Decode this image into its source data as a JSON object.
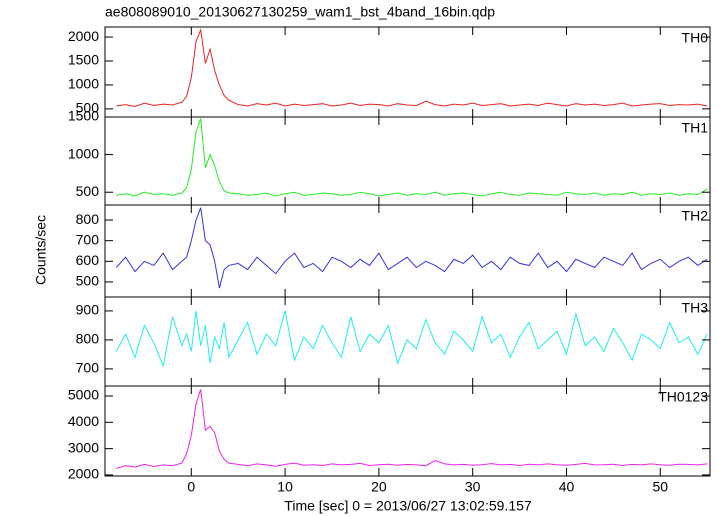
{
  "title": "ae808089010_20130627130259_wam1_bst_4band_16bin.qdp",
  "ylabel": "Counts/sec",
  "xlabel": "Time [sec] 0 = 2013/06/27 13:02:59.157",
  "chart_data": [
    {
      "type": "line",
      "label": "TH0",
      "color": "#ee2222",
      "x": [
        -8,
        -7,
        -6,
        -5,
        -4,
        -3,
        -2,
        -1,
        -0.5,
        0,
        0.5,
        1,
        1.5,
        2,
        2.5,
        3,
        3.5,
        4,
        5,
        6,
        7,
        8,
        9,
        10,
        11,
        12,
        13,
        14,
        15,
        16,
        17,
        18,
        19,
        20,
        21,
        22,
        23,
        24,
        25,
        26,
        27,
        28,
        29,
        30,
        31,
        32,
        33,
        34,
        35,
        36,
        37,
        38,
        39,
        40,
        41,
        42,
        43,
        44,
        45,
        46,
        47,
        48,
        49,
        50,
        51,
        52,
        53,
        54,
        55
      ],
      "values": [
        560,
        590,
        550,
        620,
        570,
        600,
        580,
        640,
        760,
        1150,
        1900,
        2150,
        1450,
        1750,
        1300,
        1000,
        780,
        680,
        590,
        560,
        610,
        580,
        620,
        560,
        600,
        570,
        590,
        610,
        560,
        580,
        620,
        570,
        600,
        590,
        560,
        610,
        580,
        570,
        660,
        590,
        560,
        600,
        580,
        620,
        570,
        590,
        610,
        560,
        580,
        600,
        570,
        620,
        590,
        560,
        610,
        580,
        600,
        570,
        590,
        620,
        560,
        580,
        600,
        610,
        570,
        590,
        580,
        600,
        560
      ],
      "xlim": [
        -9.2,
        55.3
      ],
      "ylim": [
        330,
        2210
      ],
      "xticks": [
        0,
        10,
        20,
        30,
        40,
        50
      ],
      "yticks": [
        500,
        1000,
        1500,
        2000
      ]
    },
    {
      "type": "line",
      "label": "TH1",
      "color": "#22ee22",
      "x": [
        -8,
        -7,
        -6,
        -5,
        -4,
        -3,
        -2,
        -1,
        -0.5,
        0,
        0.5,
        1,
        1.5,
        2,
        2.5,
        3,
        3.5,
        4,
        5,
        6,
        7,
        8,
        9,
        10,
        11,
        12,
        13,
        14,
        15,
        16,
        17,
        18,
        19,
        20,
        21,
        22,
        23,
        24,
        25,
        26,
        27,
        28,
        29,
        30,
        31,
        32,
        33,
        34,
        35,
        36,
        37,
        38,
        39,
        40,
        41,
        42,
        43,
        44,
        45,
        46,
        47,
        48,
        49,
        50,
        51,
        52,
        53,
        54,
        55
      ],
      "values": [
        460,
        480,
        450,
        500,
        470,
        480,
        460,
        490,
        560,
        800,
        1300,
        1480,
        820,
        1000,
        850,
        640,
        520,
        490,
        480,
        460,
        470,
        490,
        450,
        480,
        500,
        460,
        470,
        490,
        480,
        460,
        470,
        500,
        480,
        450,
        470,
        490,
        460,
        480,
        470,
        500,
        460,
        480,
        490,
        470,
        450,
        480,
        500,
        470,
        460,
        490,
        480,
        470,
        460,
        500,
        480,
        470,
        490,
        460,
        480,
        470,
        500,
        460,
        480,
        470,
        490,
        460,
        480,
        470,
        540
      ],
      "xlim": [
        -9.2,
        55.3
      ],
      "ylim": [
        330,
        1500
      ],
      "xticks": [
        0,
        10,
        20,
        30,
        40,
        50
      ],
      "yticks": [
        500,
        1000,
        1500
      ]
    },
    {
      "type": "line",
      "label": "TH2",
      "color": "#3333dd",
      "x": [
        -8,
        -7,
        -6,
        -5,
        -4,
        -3,
        -2,
        -1,
        -0.5,
        0,
        0.5,
        1,
        1.5,
        2,
        2.5,
        3,
        3.5,
        4,
        5,
        6,
        7,
        8,
        9,
        10,
        11,
        12,
        13,
        14,
        15,
        16,
        17,
        18,
        19,
        20,
        21,
        22,
        23,
        24,
        25,
        26,
        27,
        28,
        29,
        30,
        31,
        32,
        33,
        34,
        35,
        36,
        37,
        38,
        39,
        40,
        41,
        42,
        43,
        44,
        45,
        46,
        47,
        48,
        49,
        50,
        51,
        52,
        53,
        54,
        55
      ],
      "values": [
        570,
        620,
        550,
        600,
        580,
        640,
        560,
        600,
        620,
        700,
        800,
        860,
        700,
        680,
        600,
        470,
        560,
        580,
        590,
        560,
        620,
        580,
        540,
        600,
        640,
        570,
        590,
        550,
        620,
        600,
        570,
        610,
        580,
        640,
        560,
        590,
        620,
        570,
        600,
        580,
        550,
        610,
        590,
        630,
        570,
        600,
        560,
        620,
        590,
        580,
        640,
        570,
        600,
        550,
        610,
        590,
        570,
        620,
        600,
        580,
        640,
        560,
        590,
        610,
        570,
        600,
        620,
        580,
        610
      ],
      "xlim": [
        -9.2,
        55.3
      ],
      "ylim": [
        427,
        873
      ],
      "xticks": [
        0,
        10,
        20,
        30,
        40,
        50
      ],
      "yticks": [
        500,
        600,
        700,
        800
      ]
    },
    {
      "type": "line",
      "label": "TH3",
      "color": "#22eeee",
      "x": [
        -8,
        -7,
        -6,
        -5,
        -4,
        -3,
        -2,
        -1,
        -0.5,
        0,
        0.5,
        1,
        1.5,
        2,
        2.5,
        3,
        3.5,
        4,
        5,
        6,
        7,
        8,
        9,
        10,
        11,
        12,
        13,
        14,
        15,
        16,
        17,
        18,
        19,
        20,
        21,
        22,
        23,
        24,
        25,
        26,
        27,
        28,
        29,
        30,
        31,
        32,
        33,
        34,
        35,
        36,
        37,
        38,
        39,
        40,
        41,
        42,
        43,
        44,
        45,
        46,
        47,
        48,
        49,
        50,
        51,
        52,
        53,
        54,
        55
      ],
      "values": [
        760,
        820,
        740,
        850,
        790,
        710,
        880,
        780,
        820,
        760,
        900,
        780,
        850,
        720,
        810,
        770,
        860,
        740,
        800,
        860,
        750,
        820,
        780,
        900,
        730,
        810,
        770,
        850,
        790,
        740,
        880,
        760,
        820,
        790,
        850,
        720,
        800,
        770,
        870,
        790,
        750,
        830,
        800,
        760,
        880,
        790,
        820,
        740,
        810,
        860,
        770,
        800,
        830,
        750,
        890,
        780,
        810,
        760,
        840,
        790,
        730,
        820,
        800,
        770,
        860,
        790,
        810,
        750,
        820
      ],
      "xlim": [
        -9.2,
        55.3
      ],
      "ylim": [
        641,
        948
      ],
      "xticks": [
        0,
        10,
        20,
        30,
        40,
        50
      ],
      "yticks": [
        700,
        800,
        900
      ]
    },
    {
      "type": "line",
      "label": "TH0123",
      "color": "#ee22ee",
      "x": [
        -8,
        -7,
        -6,
        -5,
        -4,
        -3,
        -2,
        -1,
        -0.5,
        0,
        0.5,
        1,
        1.5,
        2,
        2.5,
        3,
        3.5,
        4,
        5,
        6,
        7,
        8,
        9,
        10,
        11,
        12,
        13,
        14,
        15,
        16,
        17,
        18,
        19,
        20,
        21,
        22,
        23,
        24,
        25,
        26,
        27,
        28,
        29,
        30,
        31,
        32,
        33,
        34,
        35,
        36,
        37,
        38,
        39,
        40,
        41,
        42,
        43,
        44,
        45,
        46,
        47,
        48,
        49,
        50,
        51,
        52,
        53,
        54,
        55
      ],
      "values": [
        2250,
        2350,
        2300,
        2400,
        2320,
        2380,
        2350,
        2450,
        2800,
        3500,
        4700,
        5250,
        3700,
        3850,
        3600,
        2900,
        2600,
        2450,
        2400,
        2350,
        2420,
        2380,
        2330,
        2400,
        2450,
        2370,
        2390,
        2360,
        2420,
        2380,
        2400,
        2440,
        2360,
        2390,
        2410,
        2370,
        2400,
        2380,
        2350,
        2550,
        2420,
        2380,
        2400,
        2370,
        2390,
        2430,
        2380,
        2400,
        2360,
        2410,
        2380,
        2420,
        2390,
        2370,
        2400,
        2440,
        2380,
        2390,
        2410,
        2360,
        2400,
        2380,
        2420,
        2390,
        2370,
        2410,
        2400,
        2380,
        2420
      ],
      "xlim": [
        -9.2,
        55.3
      ],
      "ylim": [
        1960,
        5380
      ],
      "xticks": [
        0,
        10,
        20,
        30,
        40,
        50
      ],
      "yticks": [
        2000,
        3000,
        4000,
        5000
      ]
    }
  ]
}
